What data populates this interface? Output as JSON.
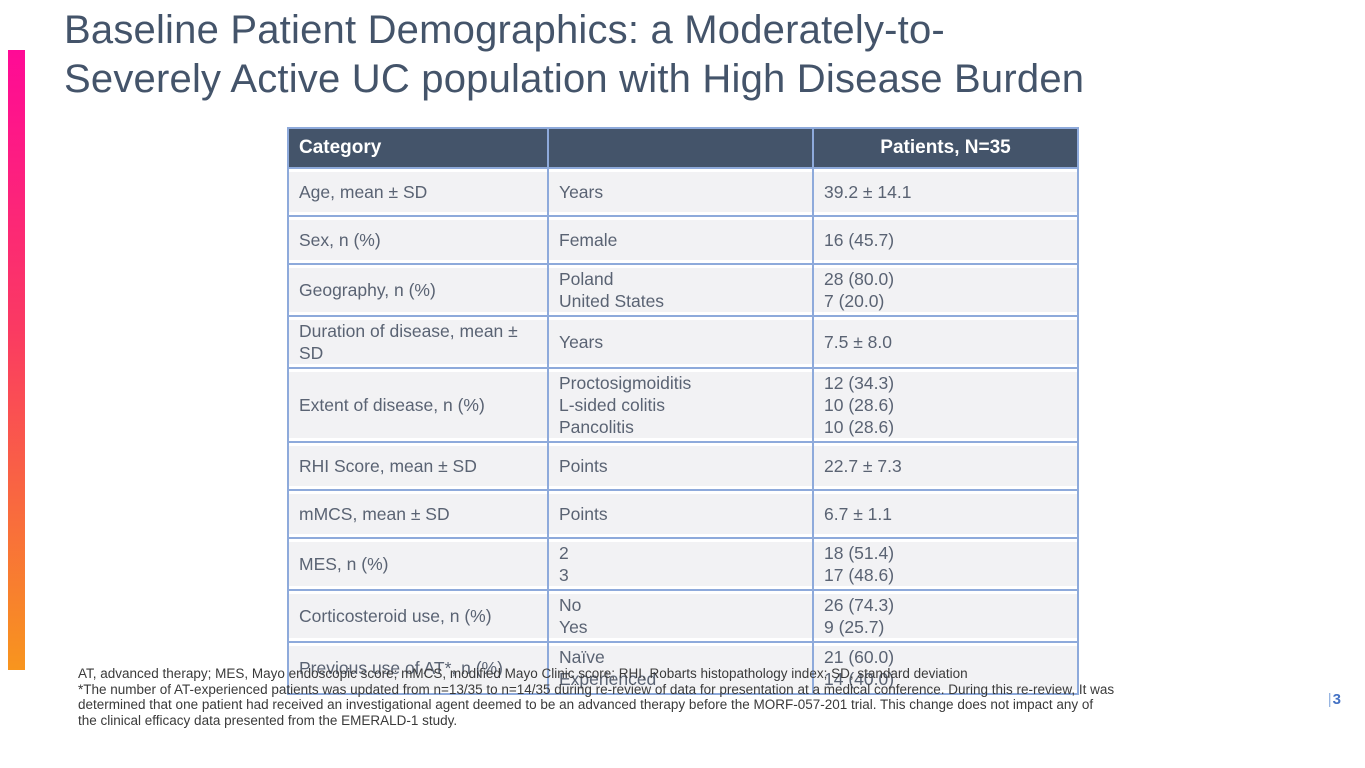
{
  "title": {
    "lines": [
      "Baseline Patient Demographics: a Moderately-to-",
      "Severely Active UC population with High Disease Burden"
    ]
  },
  "table": {
    "type": "table",
    "headers": [
      "Category",
      "",
      "Patients, N=35"
    ],
    "rows": [
      {
        "category": "Age, mean ± SD",
        "labels": [
          "Years"
        ],
        "values": [
          "39.2 ± 14.1"
        ]
      },
      {
        "category": "Sex, n (%)",
        "labels": [
          "Female"
        ],
        "values": [
          "16 (45.7)"
        ]
      },
      {
        "category": "Geography, n (%)",
        "labels": [
          "Poland",
          "United States"
        ],
        "values": [
          "28 (80.0)",
          "7 (20.0)"
        ]
      },
      {
        "category": "Duration of disease, mean ± SD",
        "labels": [
          "Years"
        ],
        "values": [
          "7.5 ± 8.0"
        ]
      },
      {
        "category": "Extent of disease, n (%)",
        "labels": [
          "Proctosigmoiditis",
          "L-sided colitis",
          "Pancolitis"
        ],
        "values": [
          "12 (34.3)",
          "10 (28.6)",
          "10 (28.6)"
        ]
      },
      {
        "category": "RHI Score, mean ± SD",
        "labels": [
          "Points"
        ],
        "values": [
          "22.7 ± 7.3"
        ]
      },
      {
        "category": "mMCS, mean ± SD",
        "labels": [
          "Points"
        ],
        "values": [
          "6.7 ± 1.1"
        ]
      },
      {
        "category": "MES, n (%)",
        "labels": [
          "2",
          "3"
        ],
        "values": [
          "18 (51.4)",
          "17 (48.6)"
        ]
      },
      {
        "category": "Corticosteroid use, n (%)",
        "labels": [
          "No",
          "Yes"
        ],
        "values": [
          "26 (74.3)",
          "9 (25.7)"
        ]
      },
      {
        "category": "Previous use of AT*, n (%)",
        "labels": [
          "Naïve",
          "Experienced"
        ],
        "values": [
          "21 (60.0)",
          "14 (40.0)"
        ]
      }
    ]
  },
  "footnote_lines": [
    "AT, advanced therapy; MES, Mayo endoscopic score; mMCS, modified Mayo Clinic score; RHI, Robarts histopathology index; SD, standard deviation",
    "*The number of AT-experienced patients was updated from n=13/35 to n=14/35 during re-review of data for presentation at a medical conference. During this re-review, It was",
    "determined that one patient had received an investigational agent deemed to be an advanced therapy before the MORF-057-201 trial. This change does not impact any of",
    "the clinical efficacy data presented from the EMERALD-1 study."
  ],
  "page": {
    "separator": "|",
    "number": "3"
  },
  "colors": {
    "accent_gradient_top": "#FF0A96",
    "accent_gradient_bottom": "#F8951E",
    "title_text": "#44546A",
    "header_bg": "#44546A",
    "header_text": "#FFFFFF",
    "table_border": "#8EAADB",
    "cell_bg": "#F2F2F4",
    "cell_text": "#5A6373",
    "footnote_text": "#3A3A3A",
    "page_number": "#4472C4"
  }
}
